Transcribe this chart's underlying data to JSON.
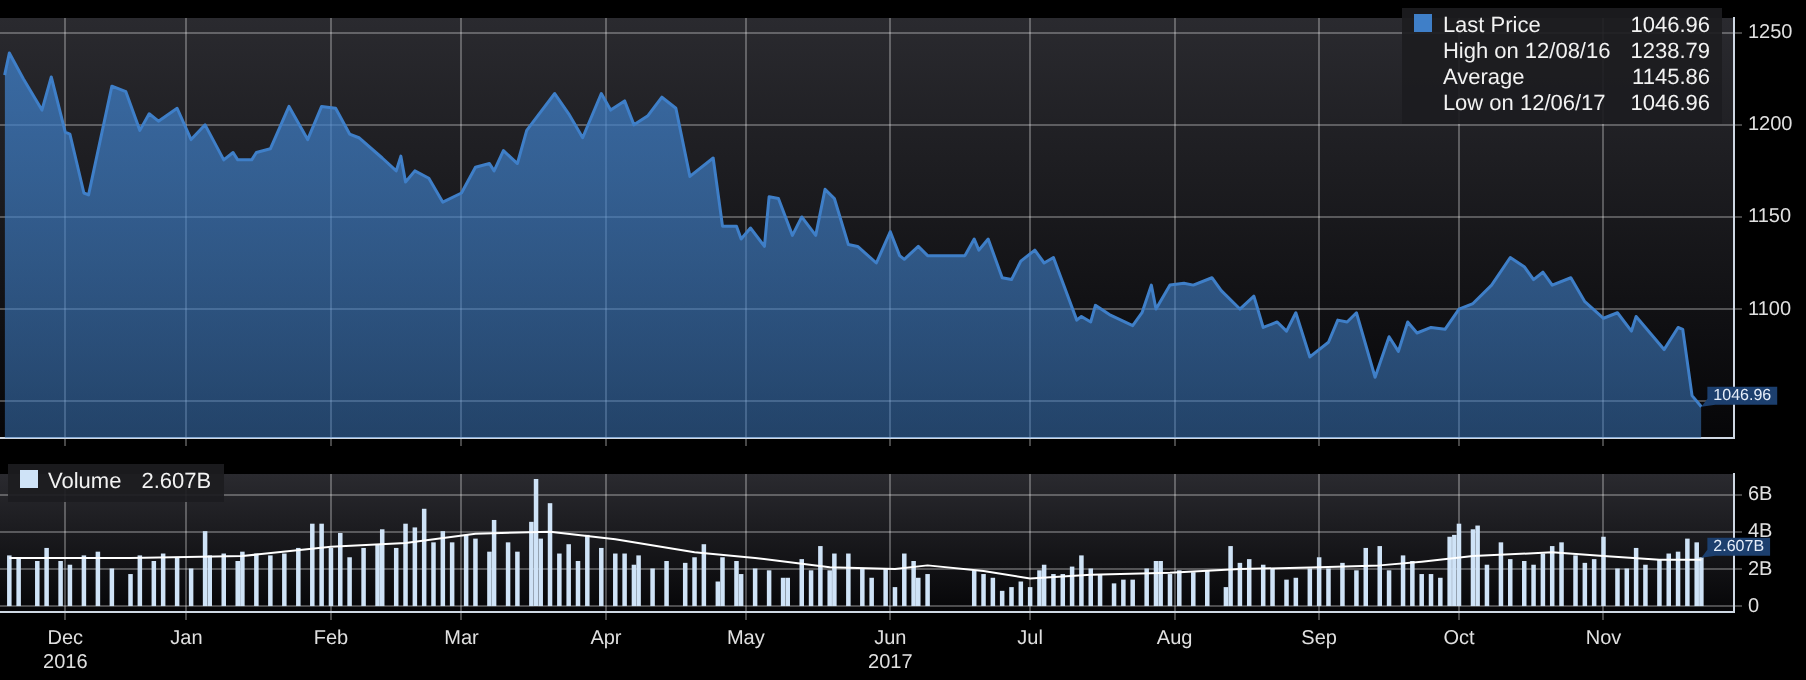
{
  "chart_data": [
    {
      "type": "area",
      "legend": "top right",
      "grid": true,
      "tick_labels": "y",
      "marker": "none",
      "xlim": [
        "2016-12-06",
        "2017-12-13"
      ],
      "ylim": [
        1030,
        1258
      ],
      "yticks": [
        {
          "value": 1050,
          "label": null
        },
        1100,
        1150,
        1200,
        1250
      ],
      "xticks": [
        {
          "value": "2016-12-20",
          "label": null
        },
        {
          "value": "2017-01-15",
          "label": null
        },
        {
          "value": "2017-02-15",
          "label": null
        },
        {
          "value": "2017-03-15",
          "label": null
        },
        {
          "value": "2017-04-15",
          "label": null
        },
        {
          "value": "2017-05-15",
          "label": null
        },
        {
          "value": "2017-06-15",
          "label": null
        },
        {
          "value": "2017-07-15",
          "label": null
        },
        {
          "value": "2017-08-15",
          "label": null
        },
        {
          "value": "2017-09-15",
          "label": null
        },
        {
          "value": "2017-10-15",
          "label": null
        },
        {
          "value": "2017-11-15",
          "label": null
        }
      ],
      "annotations": [
        "High on 12/08/16 1238.79",
        "Average 1145.86",
        "Low on 12/06/17 1046.96",
        {
          "text": "1046.96",
          "x": "2017-12-06",
          "y": 1046.96
        }
      ],
      "x": [
        "2016-12-07",
        "2016-12-08",
        "2016-12-11",
        "2016-12-15",
        "2016-12-17",
        "2016-12-20",
        "2016-12-21",
        "2016-12-24",
        "2016-12-25",
        "2016-12-30",
        "2017-01-02",
        "2017-01-05",
        "2017-01-07",
        "2017-01-09",
        "2017-01-13",
        "2017-01-16",
        "2017-01-19",
        "2017-01-23",
        "2017-01-25",
        "2017-01-26",
        "2017-01-29",
        "2017-01-30",
        "2017-02-02",
        "2017-02-06",
        "2017-02-10",
        "2017-02-13",
        "2017-02-16",
        "2017-02-19",
        "2017-02-21",
        "2017-02-26",
        "2017-03-01",
        "2017-03-02",
        "2017-03-03",
        "2017-03-05",
        "2017-03-08",
        "2017-03-11",
        "2017-03-15",
        "2017-03-18",
        "2017-03-21",
        "2017-03-22",
        "2017-03-24",
        "2017-03-27",
        "2017-03-29",
        "2017-04-01",
        "2017-04-04",
        "2017-04-07",
        "2017-04-10",
        "2017-04-14",
        "2017-04-16",
        "2017-04-19",
        "2017-04-21",
        "2017-04-24",
        "2017-04-27",
        "2017-04-30",
        "2017-05-03",
        "2017-05-08",
        "2017-05-10",
        "2017-05-13",
        "2017-05-14",
        "2017-05-16",
        "2017-05-19",
        "2017-05-20",
        "2017-05-22",
        "2017-05-25",
        "2017-05-27",
        "2017-05-30",
        "2017-06-01",
        "2017-06-03",
        "2017-06-06",
        "2017-06-08",
        "2017-06-12",
        "2017-06-15",
        "2017-06-17",
        "2017-06-18",
        "2017-06-21",
        "2017-06-23",
        "2017-07-01",
        "2017-07-03",
        "2017-07-04",
        "2017-07-06",
        "2017-07-09",
        "2017-07-11",
        "2017-07-13",
        "2017-07-16",
        "2017-07-18",
        "2017-07-20",
        "2017-07-25",
        "2017-07-26",
        "2017-07-28",
        "2017-07-29",
        "2017-08-01",
        "2017-08-06",
        "2017-08-08",
        "2017-08-10",
        "2017-08-11",
        "2017-08-14",
        "2017-08-17",
        "2017-08-19",
        "2017-08-23",
        "2017-08-25",
        "2017-08-29",
        "2017-09-01",
        "2017-09-03",
        "2017-09-06",
        "2017-09-08",
        "2017-09-10",
        "2017-09-13",
        "2017-09-17",
        "2017-09-19",
        "2017-09-21",
        "2017-09-23",
        "2017-09-27",
        "2017-09-30",
        "2017-10-02",
        "2017-10-04",
        "2017-10-06",
        "2017-10-09",
        "2017-10-12",
        "2017-10-15",
        "2017-10-18",
        "2017-10-22",
        "2017-10-26",
        "2017-10-29",
        "2017-10-31",
        "2017-11-02",
        "2017-11-04",
        "2017-11-08",
        "2017-11-11",
        "2017-11-15",
        "2017-11-18",
        "2017-11-21",
        "2017-11-22",
        "2017-11-28",
        "2017-12-01",
        "2017-12-02",
        "2017-12-04",
        "2017-12-06"
      ],
      "series": [
        {
          "name": "Last Price 1046.96",
          "color": "#3f7fc8",
          "values": [
            1227,
            1239,
            1225,
            1208,
            1226,
            1196,
            1195,
            1163,
            1162,
            1221,
            1218,
            1197,
            1206,
            1202,
            1209,
            1192,
            1200,
            1181,
            1185,
            1181,
            1181,
            1185,
            1187,
            1210,
            1192,
            1210,
            1209,
            1195,
            1193,
            1182,
            1175,
            1183,
            1169,
            1175,
            1171,
            1158,
            1163,
            1177,
            1179,
            1175,
            1186,
            1179,
            1197,
            1207,
            1217,
            1206,
            1193,
            1217,
            1208,
            1213,
            1200,
            1205,
            1215,
            1209,
            1172,
            1182,
            1145,
            1145,
            1138,
            1144,
            1134,
            1161,
            1160,
            1140,
            1150,
            1140,
            1165,
            1160,
            1135,
            1134,
            1125,
            1142,
            1129,
            1127,
            1134,
            1129,
            1129,
            1138,
            1132,
            1138,
            1117,
            1116,
            1126,
            1132,
            1125,
            1128,
            1094,
            1096,
            1093,
            1102,
            1097,
            1091,
            1098,
            1113,
            1100,
            1113,
            1114,
            1113,
            1117,
            1110,
            1100,
            1107,
            1090,
            1093,
            1088,
            1098,
            1074,
            1082,
            1094,
            1093,
            1098,
            1063,
            1085,
            1077,
            1093,
            1087,
            1090,
            1089,
            1100,
            1103,
            1113,
            1128,
            1123,
            1116,
            1120,
            1113,
            1117,
            1104,
            1095,
            1098,
            1088,
            1096,
            1078,
            1090,
            1089,
            1053,
            1047
          ]
        }
      ]
    },
    {
      "type": "bar",
      "legend": "top left",
      "grid": true,
      "marker": "none",
      "xlim": [
        "2016-12-06",
        "2017-12-13"
      ],
      "ylim": [
        -0.3,
        7.1
      ],
      "yticks": [
        {
          "value": 0,
          "label": "0"
        },
        {
          "value": 2,
          "label": "2B"
        },
        {
          "value": 4,
          "label": "4B"
        },
        {
          "value": 6,
          "label": "6B"
        }
      ],
      "xticks": [
        {
          "value": "2016-12-20",
          "label": "Dec\n2016"
        },
        {
          "value": "2017-01-15",
          "label": "Jan"
        },
        {
          "value": "2017-02-15",
          "label": "Feb"
        },
        {
          "value": "2017-03-15",
          "label": "Mar"
        },
        {
          "value": "2017-04-15",
          "label": "Apr"
        },
        {
          "value": "2017-05-15",
          "label": "May"
        },
        {
          "value": "2017-06-15",
          "label": "Jun\n2017"
        },
        {
          "value": "2017-07-15",
          "label": "Jul"
        },
        {
          "value": "2017-08-15",
          "label": "Aug"
        },
        {
          "value": "2017-09-15",
          "label": "Sep"
        },
        {
          "value": "2017-10-15",
          "label": "Oct"
        },
        {
          "value": "2017-11-15",
          "label": "Nov"
        }
      ],
      "annotations": [
        {
          "text": "2.607B",
          "x": "2017-12-06",
          "y": 2.607
        }
      ],
      "series": [
        {
          "name": "Volume 2.607B",
          "color": "#cfe3f7",
          "x": [
            "2016-12-08",
            "2016-12-10",
            "2016-12-14",
            "2016-12-16",
            "2016-12-19",
            "2016-12-21",
            "2016-12-24",
            "2016-12-27",
            "2016-12-30",
            "2017-01-03",
            "2017-01-05",
            "2017-01-08",
            "2017-01-10",
            "2017-01-13",
            "2017-01-16",
            "2017-01-19",
            "2017-01-20",
            "2017-01-23",
            "2017-01-26",
            "2017-01-27",
            "2017-01-30",
            "2017-02-02",
            "2017-02-05",
            "2017-02-08",
            "2017-02-11",
            "2017-02-13",
            "2017-02-15",
            "2017-02-17",
            "2017-02-19",
            "2017-02-22",
            "2017-02-25",
            "2017-02-26",
            "2017-03-01",
            "2017-03-03",
            "2017-03-05",
            "2017-03-07",
            "2017-03-09",
            "2017-03-11",
            "2017-03-13",
            "2017-03-16",
            "2017-03-18",
            "2017-03-21",
            "2017-03-22",
            "2017-03-25",
            "2017-03-27",
            "2017-03-30",
            "2017-03-31",
            "2017-04-01",
            "2017-04-03",
            "2017-04-05",
            "2017-04-07",
            "2017-04-09",
            "2017-04-11",
            "2017-04-14",
            "2017-04-17",
            "2017-04-19",
            "2017-04-21",
            "2017-04-22",
            "2017-04-25",
            "2017-04-28",
            "2017-05-02",
            "2017-05-04",
            "2017-05-06",
            "2017-05-09",
            "2017-05-10",
            "2017-05-13",
            "2017-05-14",
            "2017-05-17",
            "2017-05-20",
            "2017-05-23",
            "2017-05-24",
            "2017-05-27",
            "2017-05-29",
            "2017-05-31",
            "2017-06-02",
            "2017-06-03",
            "2017-06-06",
            "2017-06-09",
            "2017-06-11",
            "2017-06-14",
            "2017-06-16",
            "2017-06-18",
            "2017-06-20",
            "2017-06-21",
            "2017-06-23",
            "2017-07-03",
            "2017-07-05",
            "2017-07-07",
            "2017-07-09",
            "2017-07-11",
            "2017-07-13",
            "2017-07-15",
            "2017-07-17",
            "2017-07-18",
            "2017-07-20",
            "2017-07-22",
            "2017-07-24",
            "2017-07-26",
            "2017-07-28",
            "2017-07-30",
            "2017-08-02",
            "2017-08-04",
            "2017-08-06",
            "2017-08-09",
            "2017-08-11",
            "2017-08-12",
            "2017-08-14",
            "2017-08-16",
            "2017-08-19",
            "2017-08-22",
            "2017-08-26",
            "2017-08-27",
            "2017-08-29",
            "2017-08-31",
            "2017-09-03",
            "2017-09-05",
            "2017-09-08",
            "2017-09-10",
            "2017-09-13",
            "2017-09-15",
            "2017-09-17",
            "2017-09-20",
            "2017-09-23",
            "2017-09-25",
            "2017-09-28",
            "2017-09-30",
            "2017-10-03",
            "2017-10-05",
            "2017-10-07",
            "2017-10-09",
            "2017-10-11",
            "2017-10-13",
            "2017-10-14",
            "2017-10-15",
            "2017-10-18",
            "2017-10-19",
            "2017-10-21",
            "2017-10-24",
            "2017-10-26",
            "2017-10-29",
            "2017-10-31",
            "2017-11-02",
            "2017-11-04",
            "2017-11-06",
            "2017-11-09",
            "2017-11-11",
            "2017-11-13",
            "2017-11-15",
            "2017-11-18",
            "2017-11-20",
            "2017-11-22",
            "2017-11-24",
            "2017-11-27",
            "2017-11-29",
            "2017-12-01",
            "2017-12-03",
            "2017-12-05",
            "2017-12-06"
          ],
          "values": [
            2.7,
            2.6,
            2.4,
            3.1,
            2.4,
            2.2,
            2.7,
            2.9,
            2.0,
            1.7,
            2.7,
            2.4,
            2.8,
            2.6,
            2.0,
            4.0,
            2.7,
            2.8,
            2.4,
            2.9,
            2.8,
            2.7,
            2.8,
            3.1,
            4.4,
            4.4,
            3.1,
            3.9,
            2.6,
            3.1,
            3.3,
            4.1,
            3.1,
            4.4,
            4.2,
            5.2,
            3.4,
            4.0,
            3.4,
            3.8,
            3.6,
            2.9,
            4.6,
            3.4,
            2.9,
            4.5,
            6.8,
            3.6,
            5.5,
            2.8,
            3.3,
            2.4,
            3.8,
            3.1,
            2.8,
            2.8,
            2.2,
            2.7,
            2.0,
            2.4,
            2.3,
            2.6,
            3.3,
            1.3,
            2.6,
            2.4,
            1.7,
            2.0,
            1.9,
            1.5,
            1.5,
            2.5,
            1.9,
            3.2,
            1.9,
            2.8,
            2.8,
            2.0,
            1.5,
            2.0,
            1.0,
            2.8,
            2.4,
            1.5,
            1.7,
            1.9,
            1.7,
            1.5,
            0.8,
            1.0,
            1.3,
            1.0,
            1.9,
            2.2,
            1.7,
            1.7,
            2.1,
            2.7,
            2.0,
            1.7,
            1.2,
            1.4,
            1.4,
            2.0,
            2.4,
            2.4,
            1.7,
            1.9,
            1.8,
            1.9,
            1.0,
            3.2,
            2.3,
            2.5,
            2.2,
            2.0,
            1.4,
            1.5,
            2.0,
            2.6,
            2.0,
            2.3,
            1.9,
            3.1,
            3.2,
            1.9,
            2.7,
            2.4,
            1.7,
            1.7,
            1.5,
            3.7,
            3.8,
            4.4,
            4.1,
            4.3,
            2.2,
            3.4,
            2.5,
            2.4,
            2.2,
            2.8,
            3.2,
            3.4,
            2.7,
            2.3,
            2.5,
            3.7,
            2.0,
            2.0,
            3.1,
            2.2,
            2.5,
            2.8,
            2.9,
            3.6,
            3.4,
            2.6
          ]
        },
        {
          "type": "line",
          "color": "#ffffff",
          "x": [
            "2016-12-08",
            "2017-01-03",
            "2017-01-27",
            "2017-02-15",
            "2017-03-03",
            "2017-03-18",
            "2017-04-03",
            "2017-04-17",
            "2017-05-04",
            "2017-05-17",
            "2017-06-02",
            "2017-06-16",
            "2017-06-23",
            "2017-07-05",
            "2017-07-15",
            "2017-07-28",
            "2017-08-14",
            "2017-08-29",
            "2017-09-15",
            "2017-09-28",
            "2017-10-07",
            "2017-10-18",
            "2017-11-04",
            "2017-11-15",
            "2017-11-27",
            "2017-12-06"
          ],
          "values": [
            2.6,
            2.6,
            2.7,
            3.2,
            3.4,
            3.9,
            4.0,
            3.6,
            2.9,
            2.6,
            2.1,
            2.0,
            2.2,
            1.9,
            1.5,
            1.7,
            1.8,
            2.0,
            2.1,
            2.2,
            2.4,
            2.7,
            2.9,
            2.7,
            2.5,
            2.5
          ]
        }
      ]
    }
  ]
}
